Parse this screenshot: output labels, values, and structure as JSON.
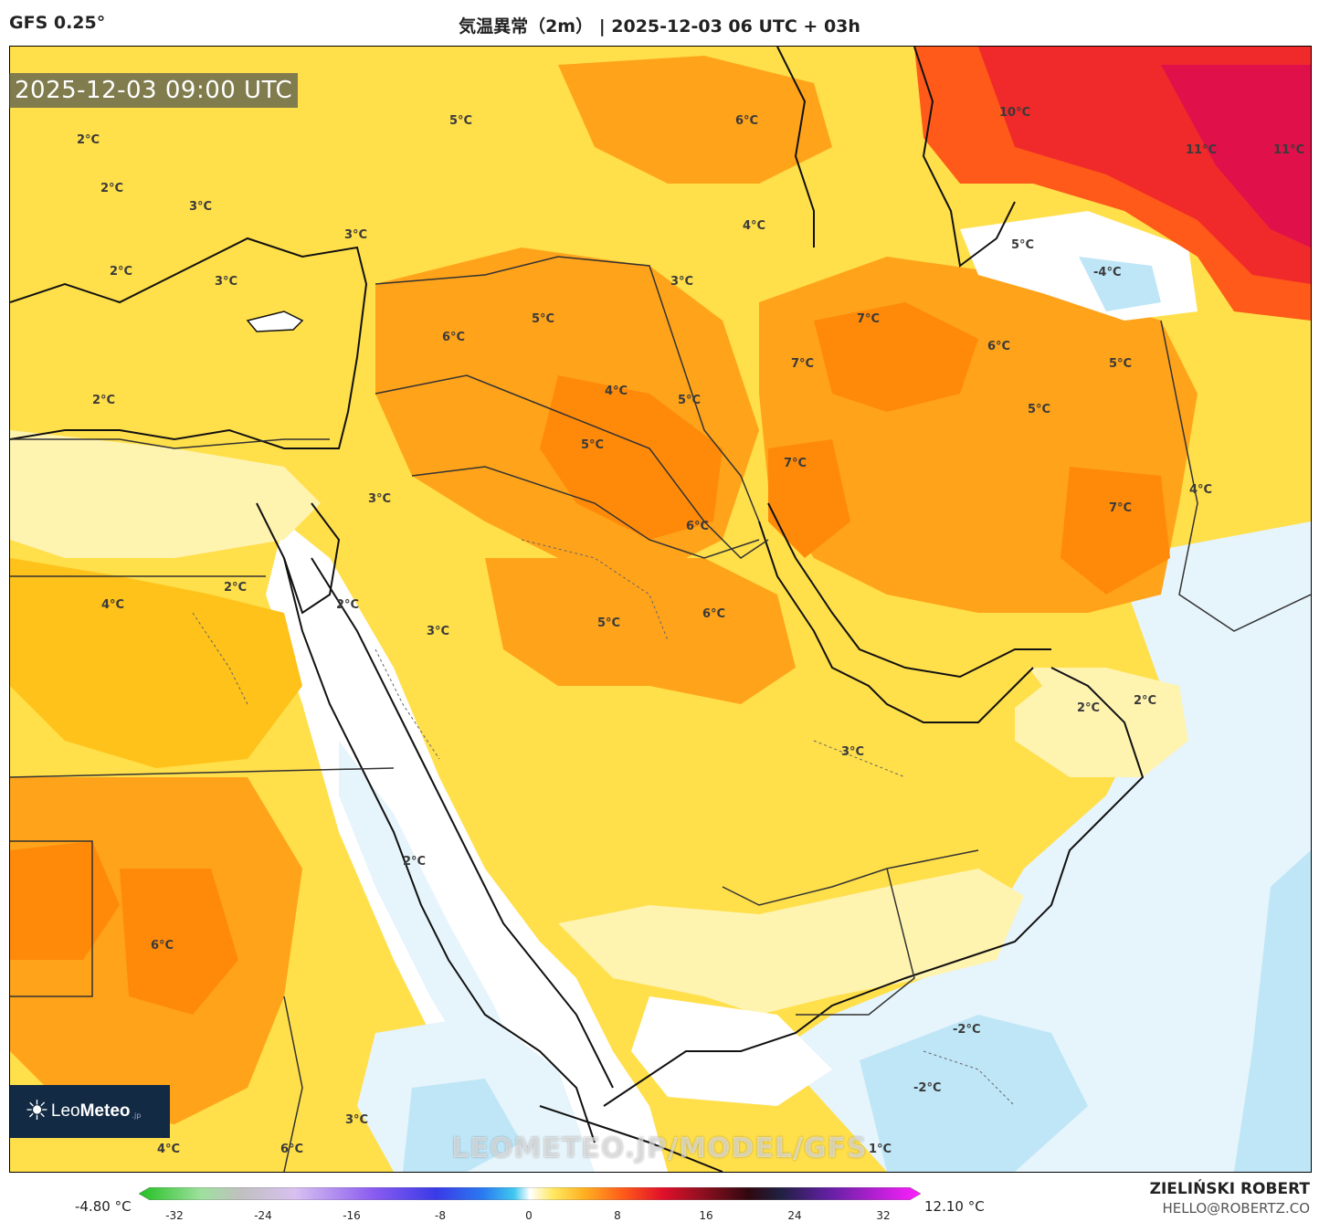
{
  "header": {
    "model": "GFS 0.25°",
    "title": "気温異常（2m） | 2025-12-03 06 UTC + 03h"
  },
  "map": {
    "valid_time": "2025-12-03 09:00 UTC",
    "watermark": "LEOMETEO.JP/MODEL/GFS",
    "logo_text_light": "Leo",
    "logo_text_bold": "Meteo",
    "logo_suffix": ".jp",
    "labels": [
      "5°C",
      "6°C",
      "10°C",
      "11°C",
      "11°C",
      "2°C",
      "2°C",
      "3°C",
      "3°C",
      "4°C",
      "2°C",
      "3°C",
      "5°C",
      "-4°C",
      "3°C",
      "5°C",
      "6°C",
      "7°C",
      "6°C",
      "7°C",
      "5°C",
      "2°C",
      "4°C",
      "5°C",
      "5°C",
      "7°C",
      "5°C",
      "3°C",
      "6°C",
      "7°C",
      "4°C",
      "2°C",
      "2°C",
      "3°C",
      "4°C",
      "5°C",
      "6°C",
      "2°C",
      "2°C",
      "3°C",
      "2°C",
      "6°C",
      "-2°C",
      "-2°C",
      "3°C",
      "4°C",
      "6°C",
      "1°C"
    ],
    "colors": {
      "cold_light": "#e6f4fb",
      "cold": "#bfe6f7",
      "cold_mid": "#7fd1f1",
      "neutral": "#ffffff",
      "warm_pale": "#fff3b0",
      "warm_1": "#ffdf4a",
      "warm_2": "#ffc21a",
      "warm_3": "#ffa31a",
      "warm_4": "#ff8a0a",
      "hot_1": "#ff5a1a",
      "hot_2": "#f02a2a",
      "hot_3": "#e0104a"
    }
  },
  "colorbar": {
    "min_label": "-4.80 °C",
    "max_label": "12.10 °C",
    "ticks": [
      "-32",
      "-24",
      "-16",
      "-8",
      "0",
      "8",
      "16",
      "24",
      "32"
    ]
  },
  "credit": {
    "author": "ZIELIŃSKI ROBERT",
    "email": "HELLO@ROBERTZ.CO"
  }
}
